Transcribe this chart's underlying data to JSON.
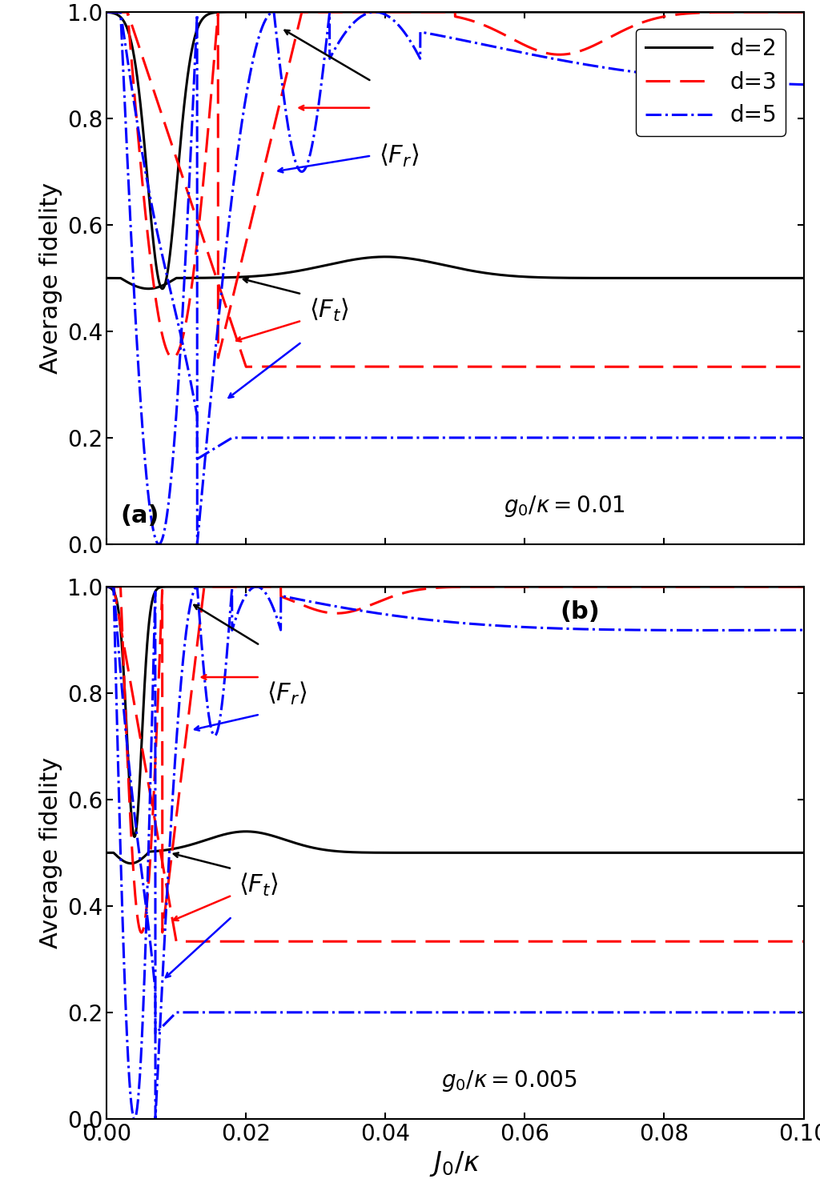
{
  "xlim": [
    0.0,
    0.1
  ],
  "ylim": [
    0.0,
    1.0
  ],
  "xlabel": "$J_0 / \\kappa$",
  "ylabel": "Average fidelity",
  "annotation_a": "$g_0 / \\kappa = 0.01$",
  "annotation_b": "$g_0 / \\kappa = 0.005$",
  "label_a": "(a)",
  "label_b": "(b)",
  "asymptote_d2": 0.5,
  "asymptote_d3": 0.3333,
  "asymptote_d5": 0.2,
  "lw": 2.2
}
